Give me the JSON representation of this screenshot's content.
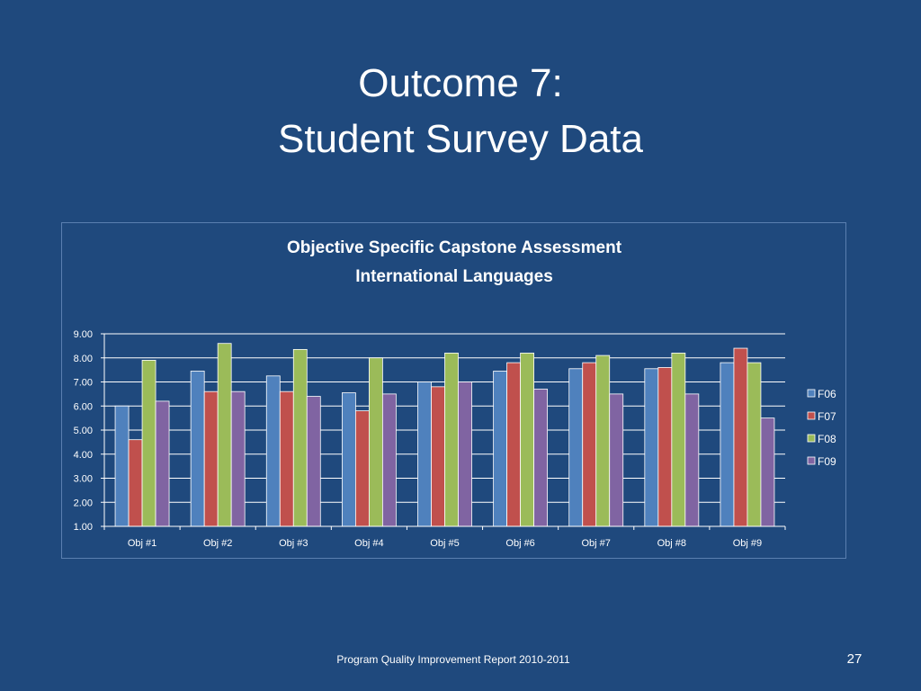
{
  "slide": {
    "title_line1": "Outcome 7:",
    "title_line2": "Student Survey Data",
    "footer": "Program Quality Improvement Report 2010-2011",
    "page_number": "27"
  },
  "chart_data": {
    "type": "bar",
    "title": "Objective Specific Capstone Assessment",
    "subtitle": "International Languages",
    "xlabel": "",
    "ylabel": "",
    "ylim": [
      1,
      9
    ],
    "yticks": [
      "1.00",
      "2.00",
      "3.00",
      "4.00",
      "5.00",
      "6.00",
      "7.00",
      "8.00",
      "9.00"
    ],
    "grid": true,
    "legend_position": "right",
    "categories": [
      "Obj #1",
      "Obj #2",
      "Obj #3",
      "Obj #4",
      "Obj #5",
      "Obj #6",
      "Obj #7",
      "Obj #8",
      "Obj #9"
    ],
    "series": [
      {
        "name": "F06",
        "color": "#4f81bd",
        "values": [
          6.0,
          7.45,
          7.25,
          6.55,
          7.0,
          7.45,
          7.55,
          7.55,
          7.8
        ]
      },
      {
        "name": "F07",
        "color": "#c0504d",
        "values": [
          4.6,
          6.6,
          6.6,
          5.8,
          6.8,
          7.8,
          7.8,
          7.6,
          8.4
        ]
      },
      {
        "name": "F08",
        "color": "#9bbb59",
        "values": [
          7.9,
          8.6,
          8.35,
          8.0,
          8.2,
          8.2,
          8.1,
          8.2,
          7.8
        ]
      },
      {
        "name": "F09",
        "color": "#8064a2",
        "values": [
          6.2,
          6.6,
          6.4,
          6.5,
          7.0,
          6.7,
          6.5,
          6.5,
          5.5
        ]
      }
    ]
  }
}
